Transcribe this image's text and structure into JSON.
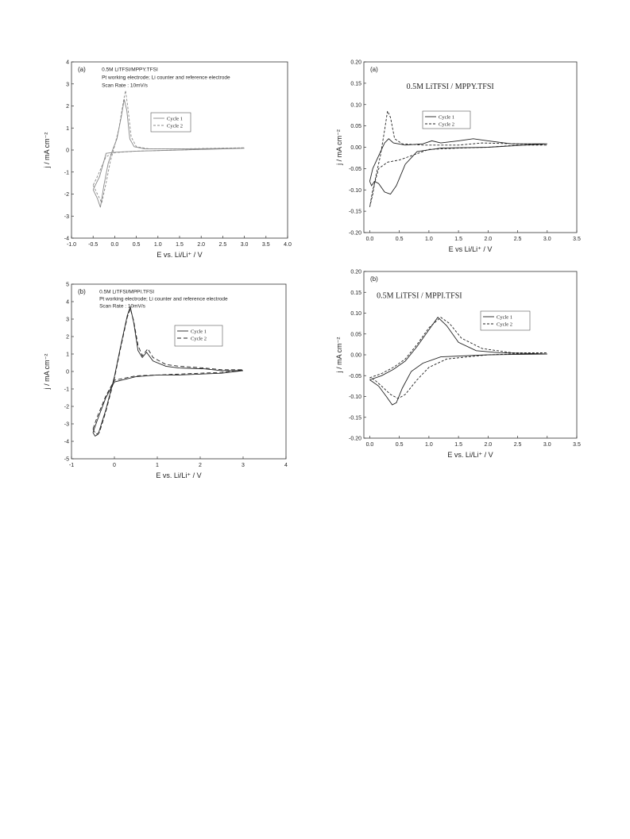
{
  "chart_data": [
    {
      "type": "line",
      "panel_label": "(a)",
      "annotations": [
        "0.5M LiTFSI/MPPY.TFSI",
        "Pt working electrode; Li counter and reference electrode",
        "Scan Rate : 10mV/s"
      ],
      "xlabel": "E vs. Li/Li⁺ / V",
      "ylabel": "j / mA cm⁻²",
      "xlim": [
        -1.0,
        4.0
      ],
      "ylim": [
        -4,
        4
      ],
      "xticks": [
        -1.0,
        -0.5,
        0.0,
        0.5,
        1.0,
        1.5,
        2.0,
        2.5,
        3.0,
        3.5,
        4.0
      ],
      "xtick_labels": [
        "-1.0",
        "-0.5",
        "0.0",
        "0.5",
        "1.0",
        "1.5",
        "2.0",
        "2.5",
        "3.0",
        "3.5",
        "4.0"
      ],
      "yticks": [
        -4,
        -3,
        -2,
        -1,
        0,
        1,
        2,
        3,
        4
      ],
      "ytick_labels": [
        "-4",
        "-3",
        "-2",
        "-1",
        "0",
        "1",
        "2",
        "3",
        "4"
      ],
      "legend": "top-center",
      "series": [
        {
          "name": "Cycle 1",
          "color": "#888888",
          "dash": "",
          "points": [
            [
              -0.5,
              -1.8
            ],
            [
              -0.4,
              -2.2
            ],
            [
              -0.33,
              -2.6
            ],
            [
              -0.25,
              -1.6
            ],
            [
              -0.15,
              -0.6
            ],
            [
              -0.05,
              0.0
            ],
            [
              0.05,
              0.5
            ],
            [
              0.15,
              1.5
            ],
            [
              0.22,
              2.3
            ],
            [
              0.28,
              1.8
            ],
            [
              0.35,
              0.5
            ],
            [
              0.45,
              0.15
            ],
            [
              0.7,
              0.05
            ],
            [
              1.5,
              0.05
            ],
            [
              3.0,
              0.08
            ],
            [
              1.5,
              0.0
            ],
            [
              0.5,
              -0.05
            ],
            [
              0.0,
              -0.1
            ],
            [
              -0.2,
              -0.15
            ],
            [
              -0.35,
              -1.2
            ],
            [
              -0.5,
              -1.8
            ]
          ]
        },
        {
          "name": "Cycle 2",
          "color": "#888888",
          "dash": "3,2",
          "points": [
            [
              -0.5,
              -1.6
            ],
            [
              -0.4,
              -2.0
            ],
            [
              -0.3,
              -2.4
            ],
            [
              -0.2,
              -1.5
            ],
            [
              -0.1,
              -0.5
            ],
            [
              0.0,
              0.2
            ],
            [
              0.1,
              1.0
            ],
            [
              0.2,
              2.2
            ],
            [
              0.25,
              2.7
            ],
            [
              0.3,
              2.0
            ],
            [
              0.38,
              0.6
            ],
            [
              0.5,
              0.15
            ],
            [
              0.8,
              0.05
            ],
            [
              1.5,
              0.05
            ],
            [
              3.0,
              0.1
            ],
            [
              1.5,
              0.0
            ],
            [
              0.5,
              -0.05
            ],
            [
              0.0,
              -0.12
            ],
            [
              -0.2,
              -0.3
            ],
            [
              -0.4,
              -1.2
            ],
            [
              -0.5,
              -1.6
            ]
          ]
        }
      ]
    },
    {
      "type": "line",
      "panel_label": "(a)",
      "annotations": [
        "0.5M LiTFSI / MPPY.TFSI"
      ],
      "xlabel": "E vs Li/Li⁺ / V",
      "ylabel": "j / mA cm⁻²",
      "xlim": [
        -0.1,
        3.5
      ],
      "ylim": [
        -0.2,
        0.2
      ],
      "xticks": [
        0.0,
        0.5,
        1.0,
        1.5,
        2.0,
        2.5,
        3.0,
        3.5
      ],
      "xtick_labels": [
        "0.0",
        "0.5",
        "1.0",
        "1.5",
        "2.0",
        "2.5",
        "3.0",
        "3.5"
      ],
      "yticks": [
        -0.2,
        -0.15,
        -0.1,
        -0.05,
        0.0,
        0.05,
        0.1,
        0.15,
        0.2
      ],
      "ytick_labels": [
        "-0.20",
        "-0.15",
        "-0.10",
        "-0.05",
        "0.00",
        "0.05",
        "0.10",
        "0.15",
        "0.20"
      ],
      "legend": "top-center",
      "series": [
        {
          "name": "Cycle 1",
          "color": "#222222",
          "dash": "",
          "points": [
            [
              0.0,
              -0.08
            ],
            [
              0.05,
              -0.05
            ],
            [
              0.15,
              -0.02
            ],
            [
              0.25,
              0.01
            ],
            [
              0.32,
              0.02
            ],
            [
              0.4,
              0.01
            ],
            [
              0.6,
              0.005
            ],
            [
              0.9,
              0.008
            ],
            [
              1.05,
              0.015
            ],
            [
              1.2,
              0.01
            ],
            [
              1.5,
              0.015
            ],
            [
              1.75,
              0.02
            ],
            [
              2.0,
              0.015
            ],
            [
              2.4,
              0.008
            ],
            [
              3.0,
              0.008
            ],
            [
              2.0,
              0.0
            ],
            [
              1.2,
              -0.002
            ],
            [
              0.8,
              -0.01
            ],
            [
              0.6,
              -0.04
            ],
            [
              0.45,
              -0.09
            ],
            [
              0.35,
              -0.11
            ],
            [
              0.25,
              -0.105
            ],
            [
              0.15,
              -0.085
            ],
            [
              0.08,
              -0.08
            ],
            [
              0.03,
              -0.09
            ],
            [
              0.0,
              -0.08
            ]
          ]
        },
        {
          "name": "Cycle 2",
          "color": "#222222",
          "dash": "3,2",
          "points": [
            [
              0.0,
              -0.14
            ],
            [
              0.05,
              -0.11
            ],
            [
              0.1,
              -0.07
            ],
            [
              0.18,
              -0.02
            ],
            [
              0.25,
              0.04
            ],
            [
              0.3,
              0.085
            ],
            [
              0.35,
              0.07
            ],
            [
              0.42,
              0.02
            ],
            [
              0.55,
              0.008
            ],
            [
              0.9,
              0.005
            ],
            [
              1.5,
              0.005
            ],
            [
              1.9,
              0.01
            ],
            [
              2.5,
              0.008
            ],
            [
              3.0,
              0.005
            ],
            [
              2.5,
              0.005
            ],
            [
              2.0,
              0.0
            ],
            [
              1.5,
              -0.002
            ],
            [
              1.0,
              -0.005
            ],
            [
              0.7,
              -0.02
            ],
            [
              0.5,
              -0.03
            ],
            [
              0.3,
              -0.035
            ],
            [
              0.15,
              -0.05
            ],
            [
              0.05,
              -0.1
            ],
            [
              0.0,
              -0.14
            ]
          ]
        }
      ]
    },
    {
      "type": "line",
      "panel_label": "(b)",
      "annotations": [
        "0.5M LiTFSI/MPPI.TFSI",
        "Pt working electrode; Li counter and reference electrode",
        "Scan Rate : 10mV/s"
      ],
      "xlabel": "E vs. Li/Li⁺ / V",
      "ylabel": "j / mA cm⁻²",
      "xlim": [
        -1,
        4
      ],
      "ylim": [
        -5,
        5
      ],
      "xticks": [
        -1,
        0,
        1,
        2,
        3,
        4
      ],
      "xtick_labels": [
        "-1",
        "0",
        "1",
        "2",
        "3",
        "4"
      ],
      "yticks": [
        -5,
        -4,
        -3,
        -2,
        -1,
        0,
        1,
        2,
        3,
        4,
        5
      ],
      "ytick_labels": [
        "-5",
        "-4",
        "-3",
        "-2",
        "-1",
        "0",
        "1",
        "2",
        "3",
        "4",
        "5"
      ],
      "legend": "top-center",
      "series": [
        {
          "name": "Cycle 1",
          "color": "#222222",
          "dash": "",
          "points": [
            [
              -0.5,
              -3.5
            ],
            [
              -0.45,
              -3.7
            ],
            [
              -0.38,
              -3.6
            ],
            [
              -0.2,
              -2.2
            ],
            [
              0.0,
              -0.3
            ],
            [
              0.15,
              1.5
            ],
            [
              0.3,
              3.2
            ],
            [
              0.37,
              3.7
            ],
            [
              0.45,
              2.8
            ],
            [
              0.55,
              1.2
            ],
            [
              0.65,
              0.8
            ],
            [
              0.75,
              1.1
            ],
            [
              0.9,
              0.6
            ],
            [
              1.2,
              0.3
            ],
            [
              1.5,
              0.2
            ],
            [
              2.1,
              0.15
            ],
            [
              2.5,
              0.05
            ],
            [
              3.0,
              0.05
            ],
            [
              2.5,
              -0.1
            ],
            [
              1.5,
              -0.2
            ],
            [
              1.0,
              -0.2
            ],
            [
              0.5,
              -0.3
            ],
            [
              0.0,
              -0.6
            ],
            [
              -0.2,
              -1.5
            ],
            [
              -0.4,
              -2.8
            ],
            [
              -0.5,
              -3.5
            ]
          ]
        },
        {
          "name": "Cycle 2",
          "color": "#222222",
          "dash": "5,3",
          "points": [
            [
              -0.5,
              -3.3
            ],
            [
              -0.43,
              -3.6
            ],
            [
              -0.35,
              -3.5
            ],
            [
              -0.2,
              -2.3
            ],
            [
              0.0,
              -0.4
            ],
            [
              0.15,
              1.4
            ],
            [
              0.3,
              3.1
            ],
            [
              0.37,
              3.6
            ],
            [
              0.45,
              2.9
            ],
            [
              0.55,
              1.5
            ],
            [
              0.65,
              0.9
            ],
            [
              0.78,
              1.3
            ],
            [
              0.9,
              0.8
            ],
            [
              1.2,
              0.4
            ],
            [
              1.5,
              0.3
            ],
            [
              2.1,
              0.2
            ],
            [
              2.5,
              0.1
            ],
            [
              3.0,
              0.1
            ],
            [
              2.5,
              -0.05
            ],
            [
              1.5,
              -0.15
            ],
            [
              1.0,
              -0.2
            ],
            [
              0.5,
              -0.25
            ],
            [
              0.0,
              -0.5
            ],
            [
              -0.2,
              -1.4
            ],
            [
              -0.4,
              -2.6
            ],
            [
              -0.5,
              -3.3
            ]
          ]
        }
      ]
    },
    {
      "type": "line",
      "panel_label": "(b)",
      "annotations": [
        "0.5M LiTFSI / MPPI.TFSI"
      ],
      "xlabel": "E vs. Li/Li⁺ / V",
      "ylabel": "j / mA cm⁻²",
      "xlim": [
        -0.1,
        3.5
      ],
      "ylim": [
        -0.2,
        0.2
      ],
      "xticks": [
        0.0,
        0.5,
        1.0,
        1.5,
        2.0,
        2.5,
        3.0,
        3.5
      ],
      "xtick_labels": [
        "0.0",
        "0.5",
        "1.0",
        "1.5",
        "2.0",
        "2.5",
        "3.0",
        "3.5"
      ],
      "yticks": [
        -0.2,
        -0.15,
        -0.1,
        -0.05,
        0.0,
        0.05,
        0.1,
        0.15,
        0.2
      ],
      "ytick_labels": [
        "-0.20",
        "-0.15",
        "-0.10",
        "-0.05",
        "0.00",
        "0.05",
        "0.10",
        "0.15",
        "0.20"
      ],
      "legend": "top-right",
      "series": [
        {
          "name": "Cycle 1",
          "color": "#222222",
          "dash": "",
          "points": [
            [
              0.0,
              -0.06
            ],
            [
              0.2,
              -0.05
            ],
            [
              0.4,
              -0.035
            ],
            [
              0.6,
              -0.015
            ],
            [
              0.8,
              0.02
            ],
            [
              1.0,
              0.06
            ],
            [
              1.15,
              0.09
            ],
            [
              1.3,
              0.07
            ],
            [
              1.5,
              0.03
            ],
            [
              1.8,
              0.01
            ],
            [
              2.2,
              0.005
            ],
            [
              3.0,
              0.002
            ],
            [
              2.0,
              0.0
            ],
            [
              1.2,
              -0.005
            ],
            [
              0.9,
              -0.02
            ],
            [
              0.7,
              -0.04
            ],
            [
              0.55,
              -0.08
            ],
            [
              0.45,
              -0.115
            ],
            [
              0.38,
              -0.12
            ],
            [
              0.28,
              -0.1
            ],
            [
              0.15,
              -0.075
            ],
            [
              0.05,
              -0.065
            ],
            [
              0.0,
              -0.06
            ]
          ]
        },
        {
          "name": "Cycle 2",
          "color": "#222222",
          "dash": "3,2",
          "points": [
            [
              0.0,
              -0.055
            ],
            [
              0.2,
              -0.045
            ],
            [
              0.4,
              -0.03
            ],
            [
              0.6,
              -0.01
            ],
            [
              0.8,
              0.025
            ],
            [
              1.0,
              0.065
            ],
            [
              1.2,
              0.09
            ],
            [
              1.35,
              0.075
            ],
            [
              1.55,
              0.04
            ],
            [
              1.9,
              0.015
            ],
            [
              2.4,
              0.005
            ],
            [
              3.0,
              0.005
            ],
            [
              2.0,
              0.0
            ],
            [
              1.3,
              -0.01
            ],
            [
              1.0,
              -0.03
            ],
            [
              0.8,
              -0.06
            ],
            [
              0.6,
              -0.095
            ],
            [
              0.48,
              -0.105
            ],
            [
              0.35,
              -0.095
            ],
            [
              0.2,
              -0.075
            ],
            [
              0.08,
              -0.06
            ],
            [
              0.0,
              -0.055
            ]
          ]
        }
      ]
    }
  ]
}
